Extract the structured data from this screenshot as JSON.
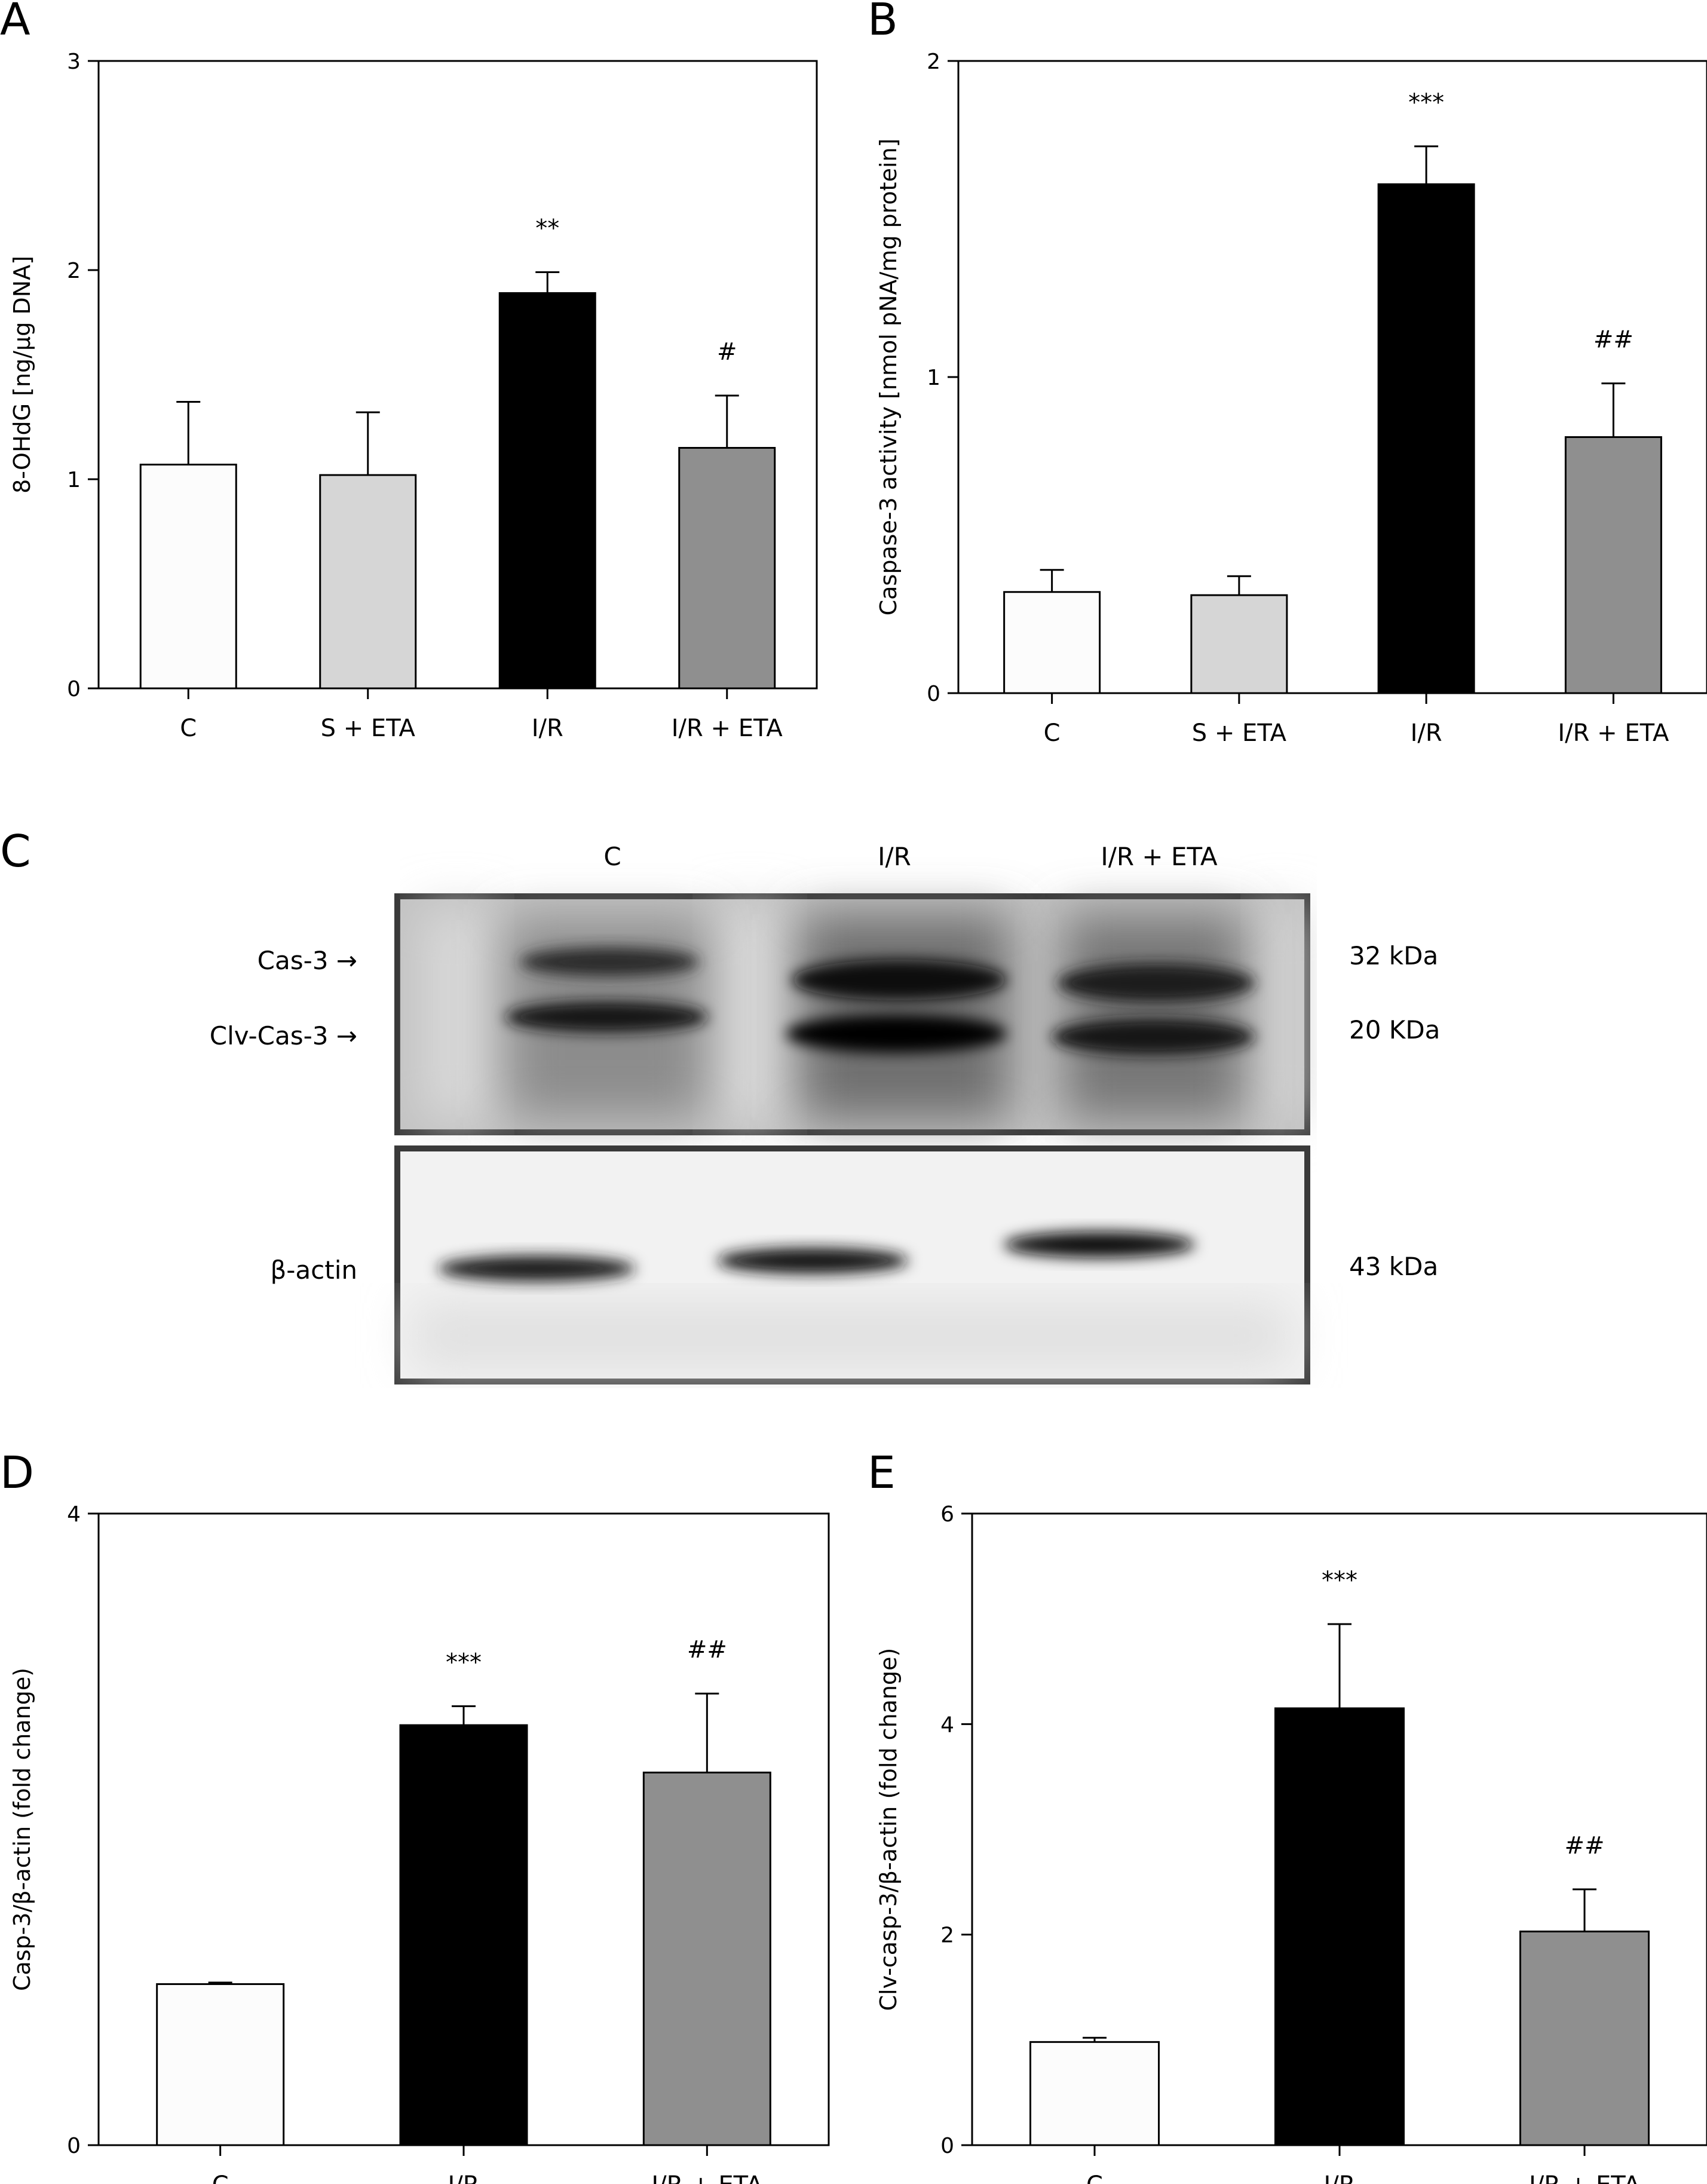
{
  "chart_data": [
    {
      "panel": "A",
      "type": "bar",
      "ylabel": "8-OHdG [ng/μg DNA]",
      "xlabel": "",
      "categories": [
        "C",
        "S + ETA",
        "I/R",
        "I/R + ETA"
      ],
      "values": [
        1.07,
        1.02,
        1.89,
        1.15
      ],
      "errors": [
        0.3,
        0.3,
        0.1,
        0.25
      ],
      "annotations": [
        "",
        "",
        "**",
        "#"
      ],
      "colors": [
        "#fcfcfc",
        "#d6d6d6",
        "#000000",
        "#8f8f8f"
      ],
      "ylim": [
        0,
        3
      ],
      "yticks": [
        0,
        1,
        2,
        3
      ],
      "grid": false
    },
    {
      "panel": "B",
      "type": "bar",
      "ylabel": "Caspase-3 activity [nmol pNA/mg protein]",
      "xlabel": "",
      "categories": [
        "C",
        "S + ETA",
        "I/R",
        "I/R + ETA"
      ],
      "values": [
        0.32,
        0.31,
        1.61,
        0.81
      ],
      "errors": [
        0.07,
        0.06,
        0.12,
        0.17
      ],
      "annotations": [
        "",
        "",
        "***",
        "##"
      ],
      "colors": [
        "#fcfcfc",
        "#d6d6d6",
        "#000000",
        "#8f8f8f"
      ],
      "ylim": [
        0,
        2
      ],
      "yticks": [
        0,
        1,
        2
      ],
      "grid": false
    },
    {
      "panel": "D",
      "type": "bar",
      "ylabel": "Casp-3/β-actin (fold change)",
      "xlabel": "",
      "categories": [
        "C",
        "I/R",
        "I/R + ETA"
      ],
      "values": [
        1.02,
        2.66,
        2.36
      ],
      "errors": [
        0.01,
        0.12,
        0.5
      ],
      "annotations": [
        "",
        "***",
        "##"
      ],
      "colors": [
        "#fcfcfc",
        "#000000",
        "#8f8f8f"
      ],
      "ylim": [
        0,
        4
      ],
      "yticks": [
        0,
        4
      ],
      "grid": false
    },
    {
      "panel": "E",
      "type": "bar",
      "ylabel": "Clv-casp-3/β-actin (fold change)",
      "xlabel": "",
      "categories": [
        "C",
        "I/R",
        "I/R + ETA"
      ],
      "values": [
        0.98,
        4.15,
        2.03
      ],
      "errors": [
        0.04,
        0.8,
        0.4
      ],
      "annotations": [
        "",
        "***",
        "##"
      ],
      "colors": [
        "#fcfcfc",
        "#000000",
        "#8f8f8f"
      ],
      "ylim": [
        0,
        6
      ],
      "yticks": [
        0,
        2,
        4,
        6
      ],
      "grid": false
    }
  ],
  "western_blot": {
    "panel": "C",
    "lanes": [
      "C",
      "I/R",
      "I/R + ETA"
    ],
    "top_bands": [
      {
        "label": "Cas-3 →",
        "size": "32 kDa"
      },
      {
        "label": "Clv-Cas-3 →",
        "size": "20 KDa"
      }
    ],
    "bottom_band": {
      "label": "β-actin",
      "size": "43 kDa"
    }
  }
}
